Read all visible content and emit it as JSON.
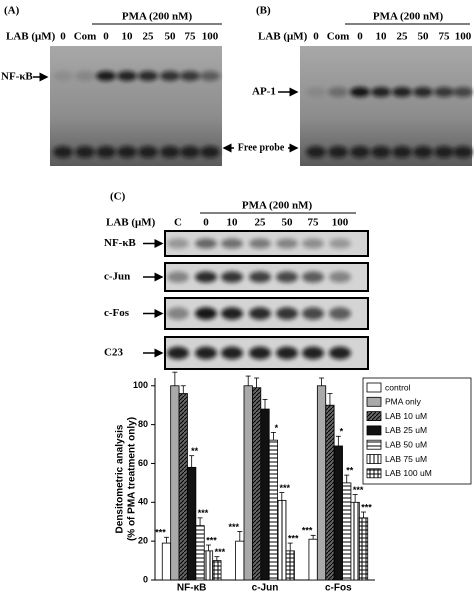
{
  "panel_a": {
    "label": "(A)",
    "treatment": "PMA (200 nM)",
    "dose_label": "LAB (μM)",
    "lanes": [
      "0",
      "Com",
      "0",
      "10",
      "25",
      "50",
      "75",
      "100"
    ],
    "band_label": "NF-κB",
    "probe_label": "Free probe"
  },
  "panel_b": {
    "label": "(B)",
    "treatment": "PMA (200 nM)",
    "dose_label": "LAB (μM)",
    "lanes": [
      "0",
      "Com",
      "0",
      "10",
      "25",
      "50",
      "75",
      "100"
    ],
    "band_label": "AP-1"
  },
  "panel_c": {
    "label": "(C)",
    "treatment": "PMA (200 nM)",
    "dose_label": "LAB (μM)",
    "lanes": [
      "C",
      "0",
      "10",
      "25",
      "50",
      "75",
      "100"
    ],
    "blots": [
      "NF-κB",
      "c-Jun",
      "c-Fos",
      "C23"
    ]
  },
  "chart_data": {
    "type": "bar",
    "y_label": [
      "Densitometric analysis",
      "(% of PMA treatment only)"
    ],
    "categories": [
      "NF-κB",
      "c-Jun",
      "c-Fos"
    ],
    "series": [
      {
        "name": "control",
        "color": "#ffffff",
        "pattern": "none",
        "values": [
          19,
          20,
          21
        ],
        "errors": [
          3,
          5,
          2
        ],
        "significance": [
          "***",
          "***",
          "***"
        ]
      },
      {
        "name": "PMA only",
        "color": "#aaaaaa",
        "pattern": "none",
        "values": [
          100,
          100,
          100
        ],
        "errors": [
          7,
          5,
          4
        ]
      },
      {
        "name": "LAB 10 uM",
        "color": "#666666",
        "pattern": "diagonal",
        "values": [
          96,
          99,
          90
        ],
        "errors": [
          4,
          5,
          6
        ]
      },
      {
        "name": "LAB 25 uM",
        "color": "#111111",
        "pattern": "none",
        "values": [
          58,
          88,
          69
        ],
        "errors": [
          6,
          5,
          5
        ],
        "significance": [
          "**",
          null,
          "*"
        ]
      },
      {
        "name": "LAB 50 uM",
        "color": "#ffffff",
        "pattern": "horizontal",
        "values": [
          28,
          72,
          50
        ],
        "errors": [
          4,
          4,
          4
        ],
        "significance": [
          "***",
          "*",
          "**"
        ]
      },
      {
        "name": "LAB 75 uM",
        "color": "#ffffff",
        "pattern": "vertical",
        "values": [
          15,
          41,
          40
        ],
        "errors": [
          3,
          4,
          4
        ],
        "significance": [
          "***",
          "***",
          "***"
        ]
      },
      {
        "name": "LAB 100 uM",
        "color": "#ffffff",
        "pattern": "grid",
        "values": [
          10,
          15,
          32
        ],
        "errors": [
          2,
          4,
          3
        ],
        "significance": [
          "***",
          "***",
          "***"
        ]
      }
    ],
    "ylim": [
      0,
      104
    ],
    "yticks": [
      0,
      20,
      40,
      60,
      80,
      100
    ],
    "grid": false,
    "legend": "top-right"
  }
}
